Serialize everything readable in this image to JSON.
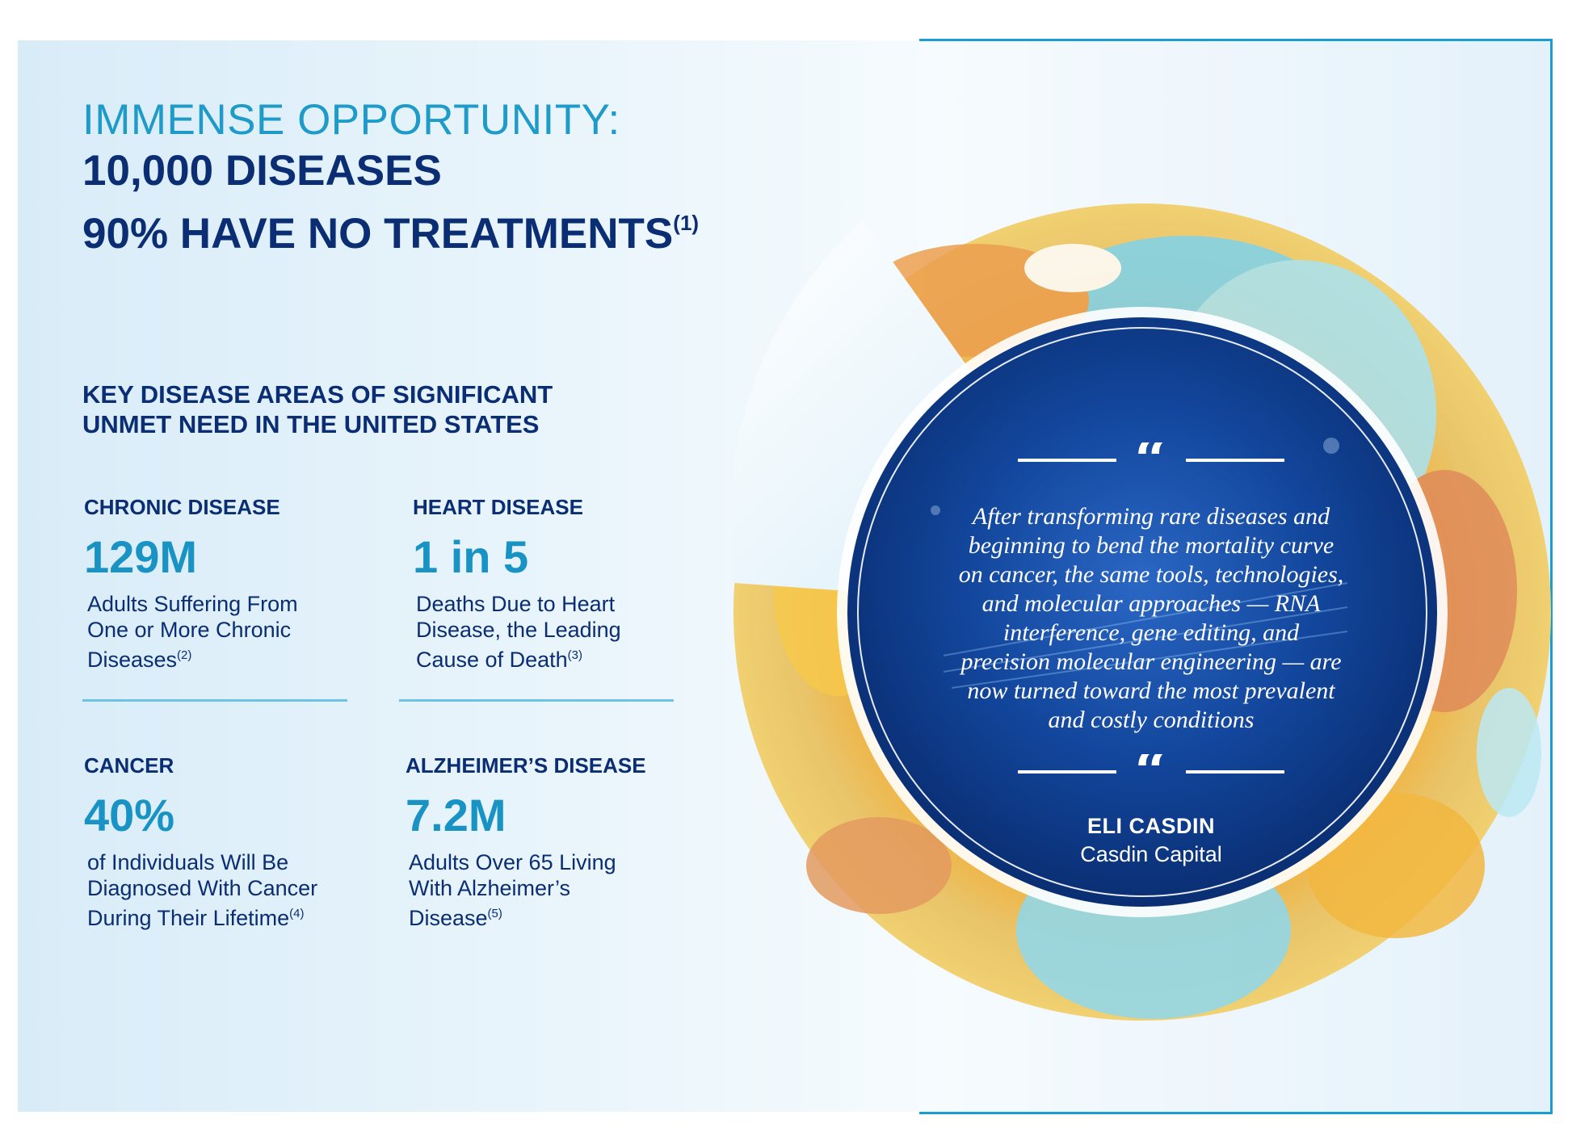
{
  "headline": {
    "line1": "IMMENSE OPPORTUNITY:",
    "line2": "10,000 DISEASES",
    "line3": "90% HAVE NO TREATMENTS",
    "line3_sup": "(1)"
  },
  "section": {
    "title_line1": "KEY DISEASE AREAS OF SIGNIFICANT",
    "title_line2": "UNMET NEED IN THE UNITED STATES"
  },
  "stats": [
    {
      "label": "CHRONIC DISEASE",
      "value": "129M",
      "desc": [
        "Adults Suffering From",
        "One or More Chronic",
        "Diseases"
      ],
      "sup": "(2)"
    },
    {
      "label": "HEART DISEASE",
      "value": "1 in 5",
      "desc": [
        "Deaths Due to Heart",
        "Disease, the Leading",
        "Cause of Death"
      ],
      "sup": "(3)"
    },
    {
      "label": "CANCER",
      "value": "40%",
      "desc": [
        "of Individuals Will Be",
        "Diagnosed With Cancer",
        "During Their Lifetime"
      ],
      "sup": "(4)"
    },
    {
      "label": "ALZHEIMER’S DISEASE",
      "value": "7.2M",
      "desc": [
        "Adults Over 65 Living",
        "With Alzheimer’s",
        "Disease"
      ],
      "sup": "(5)"
    }
  ],
  "quote": {
    "mark": "“",
    "lines": [
      "After transforming rare diseases and",
      "beginning to bend the mortality curve",
      "on cancer, the same tools, technologies,",
      "and molecular approaches — RNA",
      "interference, gene editing, and",
      "precision molecular engineering — are",
      "now turned toward the most prevalent",
      "and costly conditions"
    ],
    "author": "ELI CASDIN",
    "company": "Casdin Capital"
  },
  "colors": {
    "navy": "#0a2d73",
    "accent_blue": "#1993c4",
    "divider": "#6cc3e6",
    "frame": "#1a9ed1",
    "quote_bg": "#0e3f8f"
  }
}
